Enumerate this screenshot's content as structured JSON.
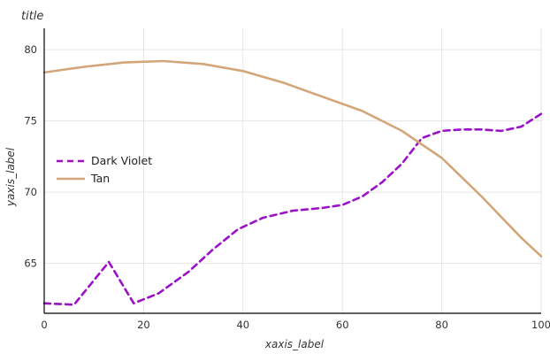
{
  "chart_data": {
    "type": "line",
    "title": "title",
    "xlabel": "xaxis_label",
    "ylabel": "yaxis_label",
    "xlim": [
      0,
      100
    ],
    "ylim": [
      61.5,
      81.5
    ],
    "xticks": [
      0,
      20,
      40,
      60,
      80,
      100
    ],
    "yticks": [
      65,
      70,
      75,
      80
    ],
    "grid": true,
    "legend_position": "left",
    "series": [
      {
        "name": "Dark Violet",
        "color": "#9b11c6",
        "style": "dashed",
        "x": [
          0,
          6,
          13,
          18,
          23,
          29,
          34,
          39,
          44,
          50,
          56,
          60,
          64,
          68,
          72,
          76,
          80,
          84,
          88,
          92,
          96,
          100
        ],
        "y": [
          62.2,
          62.1,
          65.1,
          62.2,
          62.9,
          64.4,
          66.0,
          67.4,
          68.2,
          68.7,
          68.9,
          69.1,
          69.7,
          70.7,
          72.0,
          73.8,
          74.3,
          74.4,
          74.4,
          74.3,
          74.6,
          75.5
        ]
      },
      {
        "name": "Tan",
        "color": "#d2a679",
        "style": "solid",
        "x": [
          0,
          8,
          16,
          24,
          32,
          40,
          48,
          56,
          64,
          72,
          80,
          88,
          96,
          100
        ],
        "y": [
          78.4,
          78.8,
          79.1,
          79.2,
          79.0,
          78.5,
          77.7,
          76.7,
          75.7,
          74.3,
          72.4,
          69.7,
          66.8,
          65.5
        ]
      }
    ]
  }
}
